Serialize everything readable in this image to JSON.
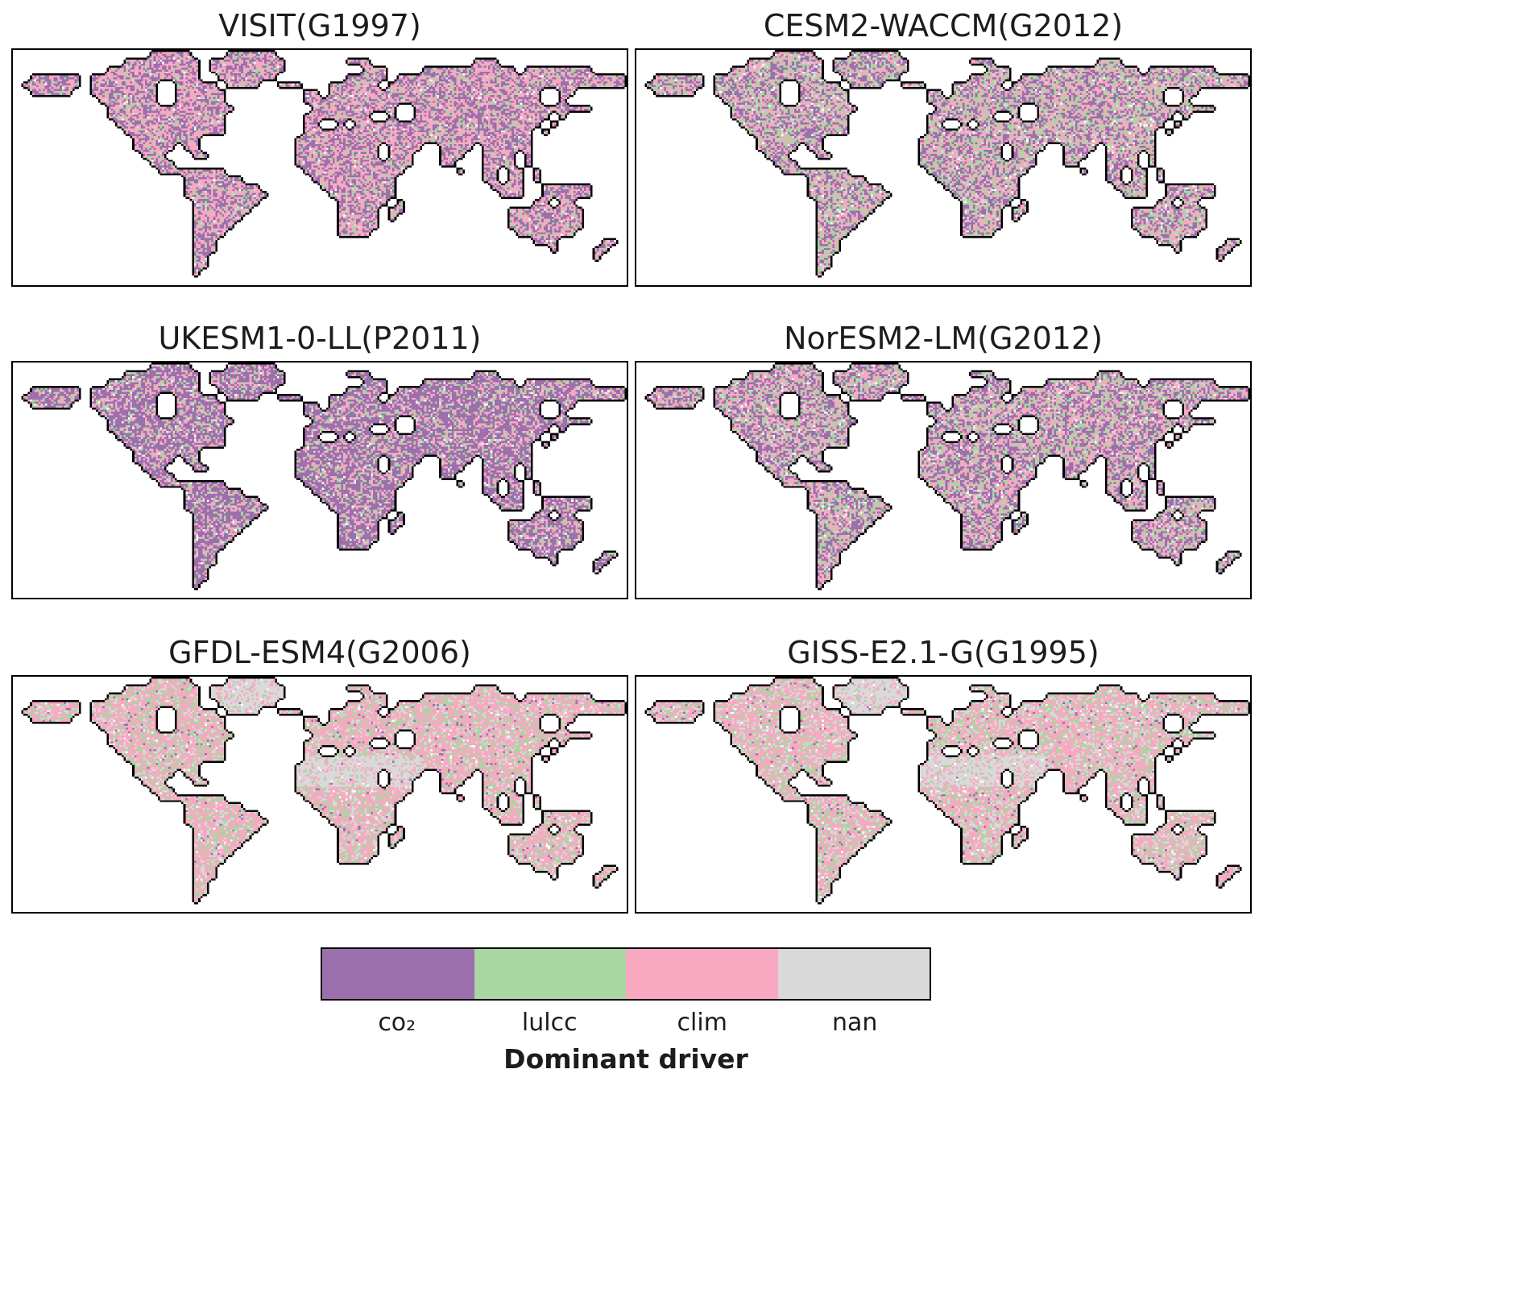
{
  "figure": {
    "panels": [
      {
        "title": "VISIT(G1997)",
        "composition": {
          "co2": 0.42,
          "lulcc": 0.14,
          "clim": 0.42,
          "nan": 0.02
        }
      },
      {
        "title": "CESM2-WACCM(G2012)",
        "composition": {
          "co2": 0.36,
          "lulcc": 0.28,
          "clim": 0.31,
          "nan": 0.05
        }
      },
      {
        "title": "UKESM1-0-LL(P2011)",
        "composition": {
          "co2": 0.6,
          "lulcc": 0.14,
          "clim": 0.23,
          "nan": 0.03
        }
      },
      {
        "title": "NorESM2-LM(G2012)",
        "composition": {
          "co2": 0.4,
          "lulcc": 0.23,
          "clim": 0.31,
          "nan": 0.06
        }
      },
      {
        "title": "GFDL-ESM4(G2006)",
        "composition": {
          "co2": 0.03,
          "lulcc": 0.24,
          "clim": 0.55,
          "nan": 0.18
        }
      },
      {
        "title": "GISS-E2.1-G(G1995)",
        "composition": {
          "co2": 0.03,
          "lulcc": 0.24,
          "clim": 0.5,
          "nan": 0.23
        }
      }
    ],
    "legend": {
      "title": "Dominant driver",
      "categories": [
        {
          "key": "co2",
          "label": "co₂",
          "color": "#9c6fad"
        },
        {
          "key": "lulcc",
          "label": "lulcc",
          "color": "#a9d6a1"
        },
        {
          "key": "clim",
          "label": "clim",
          "color": "#f9a8c2"
        },
        {
          "key": "nan",
          "label": "nan",
          "color": "#d9d9d9"
        }
      ],
      "coastline_color": "#000000",
      "ocean_color": "#ffffff"
    }
  }
}
